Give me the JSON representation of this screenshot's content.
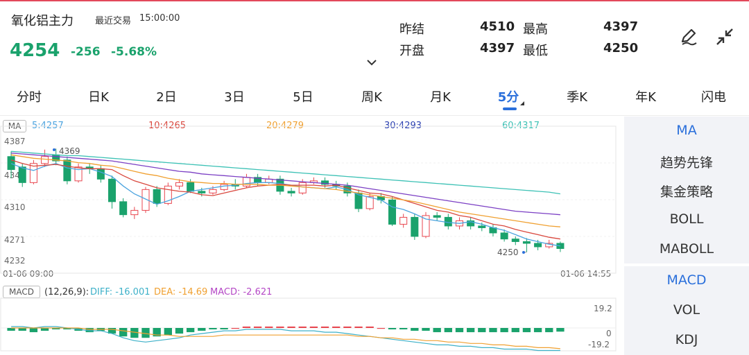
{
  "header": {
    "title": "氧化铝主力",
    "trade_state": "最近交易",
    "trade_time": "15:00:00",
    "price": "4254",
    "change": "-256",
    "change_pct": "-5.68%",
    "prev_settle_label": "昨结",
    "prev_settle_value": "4510",
    "open_label": "开盘",
    "open_value": "4397",
    "high_label": "最高",
    "high_value": "4397",
    "low_label": "最低",
    "low_value": "4250",
    "icons": [
      "pen-icon",
      "collapse-icon",
      "chevron-down-icon"
    ]
  },
  "tabs": [
    {
      "label": "分时",
      "active": false
    },
    {
      "label": "日K",
      "active": false
    },
    {
      "label": "2日",
      "active": false
    },
    {
      "label": "3日",
      "active": false
    },
    {
      "label": "5日",
      "active": false
    },
    {
      "label": "周K",
      "active": false
    },
    {
      "label": "月K",
      "active": false
    },
    {
      "label": "5分",
      "active": true
    },
    {
      "label": "季K",
      "active": false
    },
    {
      "label": "年K",
      "active": false
    },
    {
      "label": "闪电",
      "active": false
    }
  ],
  "side_panel": {
    "main_items": [
      "MA",
      "趋势先锋",
      "集金策略",
      "BOLL",
      "MABOLL"
    ],
    "main_selected": "MA",
    "sub_items": [
      "MACD",
      "VOL",
      "KDJ"
    ],
    "sub_selected": "MACD"
  },
  "ma_legend": {
    "tag": "MA",
    "ma5": "5:4257",
    "ma10": "10:4265",
    "ma20": "20:4279",
    "ma30": "30:4293",
    "ma60": "60:4317"
  },
  "macd_legend": {
    "tag": "MACD",
    "params": "(12,26,9):",
    "diff": "DIFF: -16.001",
    "dea": "DEA: -14.69",
    "macd": "MACD: -2.621"
  },
  "colors": {
    "up": "#e8454e",
    "down": "#1aa26c",
    "ma5": "#4aa3df",
    "ma10": "#d9473d",
    "ma20": "#f0a030",
    "ma30": "#7b3fc4",
    "ma60": "#3cc1b5",
    "active": "#2a6fdb"
  },
  "chart_data": {
    "type": "candlestick",
    "y_ticks": [
      "4387",
      "4348",
      "4310",
      "4271",
      "4232"
    ],
    "ylim": [
      4232,
      4387
    ],
    "x_start": "01-06 09:00",
    "x_end": "01-06 14:55",
    "max_marker": "4369",
    "min_marker": "4250",
    "candles": [
      [
        4360,
        4345,
        4366,
        4335
      ],
      [
        4348,
        4330,
        4352,
        4325
      ],
      [
        4330,
        4352,
        4356,
        4328
      ],
      [
        4352,
        4360,
        4368,
        4348
      ],
      [
        4362,
        4355,
        4369,
        4350
      ],
      [
        4356,
        4332,
        4360,
        4328
      ],
      [
        4332,
        4348,
        4352,
        4330
      ],
      [
        4348,
        4346,
        4352,
        4340
      ],
      [
        4346,
        4334,
        4350,
        4330
      ],
      [
        4334,
        4308,
        4338,
        4300
      ],
      [
        4308,
        4293,
        4312,
        4290
      ],
      [
        4293,
        4298,
        4302,
        4288
      ],
      [
        4298,
        4322,
        4325,
        4295
      ],
      [
        4322,
        4306,
        4326,
        4302
      ],
      [
        4306,
        4326,
        4330,
        4304
      ],
      [
        4326,
        4330,
        4334,
        4322
      ],
      [
        4330,
        4320,
        4334,
        4318
      ],
      [
        4320,
        4318,
        4324,
        4314
      ],
      [
        4318,
        4322,
        4326,
        4316
      ],
      [
        4322,
        4328,
        4332,
        4320
      ],
      [
        4328,
        4326,
        4334,
        4322
      ],
      [
        4326,
        4336,
        4340,
        4324
      ],
      [
        4336,
        4330,
        4340,
        4326
      ],
      [
        4330,
        4334,
        4338,
        4328
      ],
      [
        4334,
        4320,
        4338,
        4316
      ],
      [
        4320,
        4318,
        4324,
        4314
      ],
      [
        4318,
        4330,
        4334,
        4316
      ],
      [
        4330,
        4332,
        4336,
        4328
      ],
      [
        4332,
        4328,
        4336,
        4324
      ],
      [
        4328,
        4326,
        4332,
        4322
      ],
      [
        4326,
        4318,
        4330,
        4314
      ],
      [
        4318,
        4300,
        4322,
        4296
      ],
      [
        4300,
        4314,
        4318,
        4298
      ],
      [
        4314,
        4310,
        4318,
        4306
      ],
      [
        4310,
        4282,
        4314,
        4280
      ],
      [
        4282,
        4290,
        4294,
        4278
      ],
      [
        4290,
        4268,
        4294,
        4264
      ],
      [
        4268,
        4292,
        4296,
        4266
      ],
      [
        4292,
        4290,
        4296,
        4286
      ],
      [
        4290,
        4280,
        4294,
        4276
      ],
      [
        4280,
        4286,
        4290,
        4276
      ],
      [
        4286,
        4280,
        4290,
        4276
      ],
      [
        4280,
        4278,
        4284,
        4274
      ],
      [
        4278,
        4272,
        4282,
        4268
      ],
      [
        4272,
        4265,
        4276,
        4262
      ],
      [
        4265,
        4262,
        4268,
        4258
      ],
      [
        4262,
        4260,
        4266,
        4250
      ],
      [
        4260,
        4256,
        4264,
        4252
      ],
      [
        4256,
        4260,
        4264,
        4254
      ],
      [
        4260,
        4254,
        4262,
        4250
      ]
    ],
    "ma_lines": {
      "ma5": [
        4352,
        4347,
        4344,
        4349,
        4352,
        4347,
        4345,
        4346,
        4342,
        4337,
        4326,
        4317,
        4311,
        4305,
        4309,
        4314,
        4320,
        4322,
        4324,
        4326,
        4327,
        4329,
        4330,
        4330,
        4329,
        4327,
        4325,
        4324,
        4323,
        4325,
        4322,
        4316,
        4313,
        4310,
        4302,
        4299,
        4294,
        4288,
        4286,
        4284,
        4283,
        4285,
        4282,
        4278,
        4275,
        4270,
        4265,
        4262,
        4259,
        4257
      ],
      "ma10": [
        4356,
        4352,
        4349,
        4350,
        4351,
        4349,
        4347,
        4346,
        4346,
        4345,
        4338,
        4332,
        4328,
        4324,
        4322,
        4320,
        4319,
        4316,
        4315,
        4318,
        4321,
        4324,
        4326,
        4327,
        4328,
        4327,
        4327,
        4327,
        4326,
        4327,
        4324,
        4321,
        4318,
        4317,
        4314,
        4310,
        4306,
        4302,
        4298,
        4296,
        4292,
        4290,
        4286,
        4282,
        4280,
        4276,
        4273,
        4270,
        4267,
        4265
      ],
      "ma20": [
        4362,
        4360,
        4358,
        4357,
        4356,
        4355,
        4353,
        4352,
        4350,
        4349,
        4346,
        4343,
        4340,
        4338,
        4335,
        4333,
        4331,
        4330,
        4329,
        4329,
        4328,
        4328,
        4328,
        4327,
        4327,
        4326,
        4325,
        4324,
        4323,
        4322,
        4320,
        4318,
        4316,
        4314,
        4312,
        4310,
        4308,
        4305,
        4302,
        4299,
        4296,
        4294,
        4292,
        4290,
        4288,
        4286,
        4284,
        4282,
        4280,
        4279
      ],
      "ma30": [
        4364,
        4363,
        4362,
        4361,
        4360,
        4359,
        4358,
        4357,
        4356,
        4355,
        4353,
        4351,
        4349,
        4347,
        4345,
        4343,
        4342,
        4340,
        4339,
        4338,
        4337,
        4336,
        4335,
        4334,
        4333,
        4332,
        4331,
        4330,
        4329,
        4328,
        4327,
        4325,
        4323,
        4321,
        4319,
        4317,
        4315,
        4313,
        4311,
        4309,
        4307,
        4305,
        4303,
        4301,
        4299,
        4297,
        4296,
        4295,
        4294,
        4293
      ],
      "ma60": [
        4366,
        4365,
        4364,
        4363,
        4362,
        4361,
        4361,
        4360,
        4359,
        4358,
        4357,
        4356,
        4355,
        4354,
        4353,
        4352,
        4351,
        4350,
        4349,
        4348,
        4347,
        4346,
        4345,
        4344,
        4343,
        4342,
        4341,
        4340,
        4339,
        4338,
        4337,
        4336,
        4335,
        4334,
        4333,
        4332,
        4331,
        4330,
        4329,
        4328,
        4327,
        4326,
        4325,
        4324,
        4323,
        4322,
        4321,
        4320,
        4319,
        4317
      ]
    },
    "macd": {
      "y_ticks": [
        "19.2",
        "0",
        "-19.2"
      ],
      "ylim": [
        -19.2,
        19.2
      ],
      "hist": [
        -2,
        -2,
        -3,
        -2,
        -1,
        -1,
        -2,
        -3,
        -2,
        -4,
        -6,
        -7,
        -7,
        -6,
        -5,
        -4,
        -3,
        -2,
        -1,
        -1,
        0,
        1,
        1,
        1,
        1,
        1,
        1,
        1,
        1,
        1,
        1,
        1,
        1,
        0,
        -1,
        -1,
        -2,
        -2,
        -3,
        -3,
        -3,
        -3,
        -3,
        -3,
        -3,
        -3,
        -3,
        -3,
        -3,
        -2.6
      ],
      "diff": [
        1,
        1,
        0,
        1,
        1,
        0,
        -1,
        -2,
        -2,
        -4,
        -7,
        -9,
        -10,
        -9,
        -8,
        -7,
        -5,
        -4,
        -3,
        -2,
        -2,
        -1,
        -1,
        -1,
        -1,
        -2,
        -2,
        -2,
        -3,
        -3,
        -4,
        -5,
        -6,
        -7,
        -8,
        -9,
        -10,
        -11,
        -12,
        -12,
        -13,
        -13,
        -14,
        -14,
        -15,
        -15,
        -15,
        -16,
        -16,
        -16
      ],
      "dea": [
        0,
        0,
        0,
        0,
        0,
        0,
        0,
        -1,
        -1,
        -1,
        -2,
        -3,
        -4,
        -5,
        -5,
        -6,
        -6,
        -6,
        -6,
        -5,
        -5,
        -5,
        -5,
        -5,
        -5,
        -5,
        -5,
        -5,
        -5,
        -5,
        -5,
        -6,
        -6,
        -7,
        -7,
        -8,
        -8,
        -9,
        -9,
        -10,
        -10,
        -11,
        -11,
        -12,
        -12,
        -13,
        -13,
        -14,
        -14,
        -14.7
      ]
    }
  }
}
